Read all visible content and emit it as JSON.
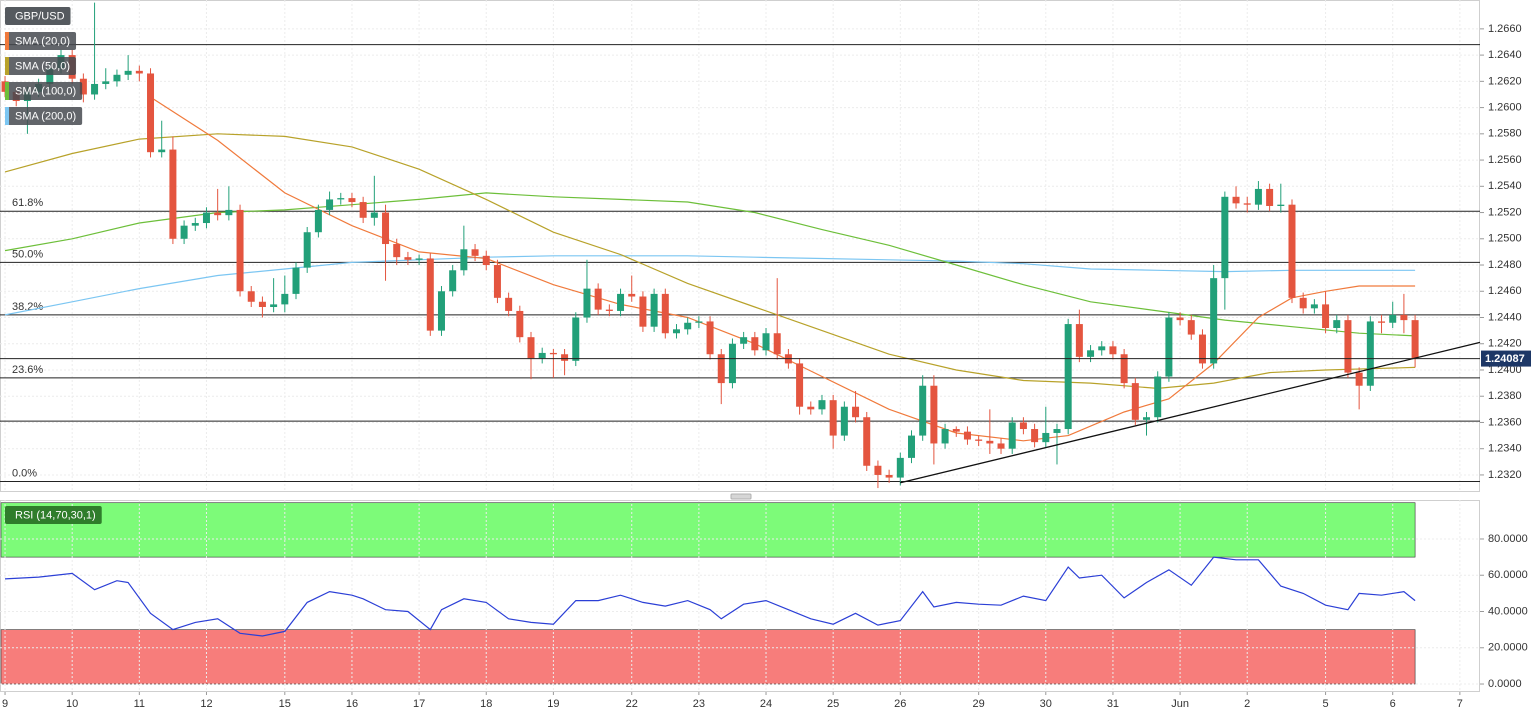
{
  "chart_data": [
    {
      "type": "candlestick",
      "title": "GBP/USD",
      "up_color": "#22a079",
      "down_color": "#e4553f",
      "xlim": [
        -0.45,
        131.8
      ],
      "ylim": [
        1.2307,
        1.2682
      ],
      "yticks": [
        {
          "value": 1.232,
          "label": "1.2320"
        },
        {
          "value": 1.234,
          "label": "1.2340"
        },
        {
          "value": 1.236,
          "label": "1.2360"
        },
        {
          "value": 1.238,
          "label": "1.2380"
        },
        {
          "value": 1.24,
          "label": "1.2400"
        },
        {
          "value": 1.242,
          "label": "1.2420"
        },
        {
          "value": 1.244,
          "label": "1.2440"
        },
        {
          "value": 1.246,
          "label": "1.2460"
        },
        {
          "value": 1.248,
          "label": "1.2480"
        },
        {
          "value": 1.25,
          "label": "1.2500"
        },
        {
          "value": 1.252,
          "label": "1.2520"
        },
        {
          "value": 1.254,
          "label": "1.2540"
        },
        {
          "value": 1.256,
          "label": "1.2560"
        },
        {
          "value": 1.258,
          "label": "1.2580"
        },
        {
          "value": 1.26,
          "label": "1.2600"
        },
        {
          "value": 1.262,
          "label": "1.2620"
        },
        {
          "value": 1.264,
          "label": "1.2640"
        },
        {
          "value": 1.266,
          "label": "1.2660"
        }
      ],
      "grid": true,
      "open": [
        1.262,
        1.2612,
        1.2605,
        1.2612,
        1.2618,
        1.263,
        1.264,
        1.2622,
        1.261,
        1.2618,
        1.262,
        1.2625,
        1.2628,
        1.2626,
        1.2566,
        1.2568,
        1.25,
        1.251,
        1.2512,
        1.252,
        1.2518,
        1.2522,
        1.246,
        1.2452,
        1.2448,
        1.245,
        1.2458,
        1.2478,
        1.2505,
        1.2522,
        1.253,
        1.2531,
        1.2528,
        1.2516,
        1.252,
        1.2496,
        1.2486,
        1.2484,
        1.2485,
        1.243,
        1.246,
        1.2476,
        1.2492,
        1.2487,
        1.248,
        1.2455,
        1.2445,
        1.2425,
        1.2409,
        1.2413,
        1.2412,
        1.2407,
        1.244,
        1.2462,
        1.2446,
        1.2445,
        1.2458,
        1.2456,
        1.2433,
        1.2458,
        1.2428,
        1.2431,
        1.2436,
        1.2437,
        1.2412,
        1.239,
        1.242,
        1.2425,
        1.2415,
        1.2428,
        1.2412,
        1.2405,
        1.2372,
        1.237,
        1.2377,
        1.235,
        1.2372,
        1.2364,
        1.2327,
        1.232,
        1.2318,
        1.2333,
        1.235,
        1.2388,
        1.2344,
        1.2355,
        1.2353,
        1.2347,
        1.2346,
        1.2344,
        1.234,
        1.236,
        1.2355,
        1.2345,
        1.2352,
        1.2355,
        1.2435,
        1.241,
        1.2415,
        1.2418,
        1.2412,
        1.239,
        1.2362,
        1.2364,
        1.2395,
        1.244,
        1.2438,
        1.2427,
        1.2405,
        1.247,
        1.2532,
        1.2527,
        1.2526,
        1.2538,
        1.2525,
        1.2526,
        1.2455,
        1.2447,
        1.245,
        1.2432,
        1.2438,
        1.2398,
        1.2388,
        1.2437,
        1.2436,
        1.2442,
        1.2438
      ],
      "high": [
        1.2624,
        1.2616,
        1.2616,
        1.2622,
        1.2634,
        1.2644,
        1.2644,
        1.2626,
        1.268,
        1.263,
        1.2629,
        1.264,
        1.2632,
        1.263,
        1.259,
        1.2578,
        1.2514,
        1.2516,
        1.2524,
        1.2538,
        1.254,
        1.2526,
        1.2464,
        1.2456,
        1.247,
        1.2472,
        1.2482,
        1.2509,
        1.2526,
        1.2536,
        1.2535,
        1.2535,
        1.2532,
        1.2548,
        1.2526,
        1.25,
        1.249,
        1.2488,
        1.2489,
        1.2464,
        1.248,
        1.251,
        1.2496,
        1.2491,
        1.2484,
        1.2459,
        1.2449,
        1.2429,
        1.2417,
        1.2416,
        1.2416,
        1.2444,
        1.2484,
        1.2466,
        1.245,
        1.2462,
        1.2472,
        1.246,
        1.2462,
        1.2462,
        1.2435,
        1.244,
        1.2441,
        1.2441,
        1.2416,
        1.2424,
        1.2429,
        1.2429,
        1.2432,
        1.247,
        1.2416,
        1.2409,
        1.2376,
        1.2381,
        1.2381,
        1.2376,
        1.2384,
        1.2368,
        1.2331,
        1.2324,
        1.2337,
        1.2354,
        1.2396,
        1.2396,
        1.2359,
        1.2357,
        1.2357,
        1.235,
        1.237,
        1.2348,
        1.2364,
        1.2364,
        1.2359,
        1.2372,
        1.2359,
        1.2439,
        1.2446,
        1.2419,
        1.2422,
        1.2422,
        1.2416,
        1.2394,
        1.2368,
        1.2399,
        1.2444,
        1.2444,
        1.2442,
        1.2431,
        1.248,
        1.2536,
        1.254,
        1.2532,
        1.2544,
        1.2542,
        1.2542,
        1.253,
        1.2459,
        1.2454,
        1.246,
        1.2442,
        1.2442,
        1.2402,
        1.2441,
        1.2442,
        1.2452,
        1.2458,
        1.2442
      ],
      "low": [
        1.2608,
        1.2601,
        1.258,
        1.2608,
        1.2614,
        1.2626,
        1.2618,
        1.2604,
        1.2606,
        1.2614,
        1.2616,
        1.2621,
        1.262,
        1.2562,
        1.2562,
        1.2496,
        1.2496,
        1.2506,
        1.2508,
        1.2514,
        1.2514,
        1.2456,
        1.2448,
        1.244,
        1.2444,
        1.2444,
        1.2454,
        1.2474,
        1.2501,
        1.2518,
        1.2526,
        1.2524,
        1.2512,
        1.251,
        1.2468,
        1.248,
        1.248,
        1.248,
        1.2426,
        1.2426,
        1.2456,
        1.2472,
        1.2483,
        1.2476,
        1.2451,
        1.2441,
        1.2421,
        1.2393,
        1.2405,
        1.2394,
        1.2396,
        1.2403,
        1.2436,
        1.2442,
        1.2441,
        1.2441,
        1.2452,
        1.2429,
        1.2429,
        1.2424,
        1.2424,
        1.2427,
        1.2432,
        1.2408,
        1.2374,
        1.2386,
        1.2416,
        1.2411,
        1.2411,
        1.2408,
        1.2401,
        1.2366,
        1.2366,
        1.2366,
        1.234,
        1.2346,
        1.236,
        1.2323,
        1.231,
        1.2314,
        1.2312,
        1.2329,
        1.2346,
        1.2328,
        1.234,
        1.2349,
        1.2343,
        1.2342,
        1.2336,
        1.2336,
        1.2336,
        1.2351,
        1.2341,
        1.2341,
        1.2328,
        1.2351,
        1.2406,
        1.2406,
        1.2411,
        1.2408,
        1.2386,
        1.2358,
        1.235,
        1.236,
        1.2391,
        1.2434,
        1.2423,
        1.2401,
        1.2401,
        1.2446,
        1.2523,
        1.252,
        1.2522,
        1.2521,
        1.252,
        1.2451,
        1.2443,
        1.2443,
        1.2428,
        1.2428,
        1.2394,
        1.237,
        1.2384,
        1.2428,
        1.2432,
        1.2428,
        1.2402
      ],
      "close": [
        1.2612,
        1.2605,
        1.2612,
        1.2618,
        1.263,
        1.264,
        1.2622,
        1.261,
        1.2618,
        1.262,
        1.2625,
        1.2628,
        1.2626,
        1.2566,
        1.2568,
        1.25,
        1.251,
        1.2512,
        1.252,
        1.2518,
        1.2522,
        1.246,
        1.2452,
        1.2448,
        1.245,
        1.2458,
        1.2478,
        1.2505,
        1.2522,
        1.253,
        1.2531,
        1.2528,
        1.2516,
        1.252,
        1.2496,
        1.2486,
        1.2484,
        1.2485,
        1.243,
        1.246,
        1.2476,
        1.2492,
        1.2487,
        1.248,
        1.2455,
        1.2445,
        1.2425,
        1.2409,
        1.2413,
        1.2412,
        1.2407,
        1.244,
        1.2462,
        1.2446,
        1.2445,
        1.2458,
        1.2456,
        1.2433,
        1.2458,
        1.2428,
        1.2431,
        1.2436,
        1.2437,
        1.2412,
        1.239,
        1.242,
        1.2425,
        1.2415,
        1.2428,
        1.2412,
        1.2405,
        1.2372,
        1.237,
        1.2377,
        1.235,
        1.2372,
        1.2364,
        1.2327,
        1.232,
        1.2318,
        1.2333,
        1.235,
        1.2388,
        1.2344,
        1.2355,
        1.2353,
        1.2347,
        1.2346,
        1.2344,
        1.234,
        1.236,
        1.2355,
        1.2345,
        1.2352,
        1.2355,
        1.2435,
        1.241,
        1.2415,
        1.2418,
        1.2412,
        1.239,
        1.2362,
        1.2364,
        1.2395,
        1.244,
        1.2438,
        1.2427,
        1.2405,
        1.247,
        1.2532,
        1.2527,
        1.2526,
        1.2538,
        1.2525,
        1.2526,
        1.2455,
        1.2447,
        1.245,
        1.2432,
        1.2438,
        1.2398,
        1.2388,
        1.2437,
        1.2436,
        1.2442,
        1.2438,
        1.2409
      ],
      "series": [
        {
          "name": "SMA (20,0)",
          "color": "#f07a3c",
          "x": [
            13,
            19,
            25,
            31,
            37,
            43,
            49,
            55,
            61,
            67,
            73,
            79,
            85,
            91,
            95,
            100,
            104,
            108,
            112,
            115,
            118,
            121,
            126
          ],
          "values": [
            1.2608,
            1.2575,
            1.2535,
            1.251,
            1.249,
            1.2485,
            1.2465,
            1.245,
            1.244,
            1.242,
            1.2395,
            1.237,
            1.2352,
            1.2346,
            1.235,
            1.2368,
            1.2378,
            1.2405,
            1.244,
            1.2455,
            1.246,
            1.2464,
            1.2464
          ]
        },
        {
          "name": "SMA (50,0)",
          "color": "#b8a22a",
          "x": [
            0,
            6,
            12,
            19,
            25,
            31,
            37,
            43,
            49,
            55,
            61,
            67,
            73,
            79,
            85,
            91,
            97,
            103,
            108,
            113,
            118,
            122,
            126
          ],
          "values": [
            1.2551,
            1.2565,
            1.2576,
            1.258,
            1.2578,
            1.257,
            1.2553,
            1.253,
            1.2505,
            1.2488,
            1.2466,
            1.2448,
            1.243,
            1.2412,
            1.24,
            1.2392,
            1.239,
            1.2386,
            1.239,
            1.2398,
            1.24,
            1.2401,
            1.2402
          ]
        },
        {
          "name": "SMA (100,0)",
          "color": "#6dbf3a",
          "x": [
            0,
            6,
            12,
            19,
            25,
            31,
            37,
            43,
            49,
            55,
            61,
            67,
            73,
            79,
            85,
            91,
            97,
            103,
            109,
            115,
            121,
            126
          ],
          "values": [
            1.2491,
            1.25,
            1.2512,
            1.252,
            1.2522,
            1.2526,
            1.253,
            1.2535,
            1.2532,
            1.253,
            1.2528,
            1.252,
            1.2507,
            1.2495,
            1.248,
            1.2465,
            1.2452,
            1.2445,
            1.2438,
            1.2433,
            1.2428,
            1.2426
          ]
        },
        {
          "name": "SMA (200,0)",
          "color": "#7cc6f2",
          "x": [
            0,
            6,
            12,
            19,
            25,
            31,
            37,
            43,
            49,
            55,
            61,
            67,
            73,
            79,
            85,
            91,
            97,
            103,
            109,
            115,
            121,
            126
          ],
          "values": [
            1.2442,
            1.2452,
            1.2462,
            1.2472,
            1.2477,
            1.2482,
            1.2484,
            1.2486,
            1.2487,
            1.2487,
            1.2487,
            1.2486,
            1.2485,
            1.2484,
            1.2483,
            1.2481,
            1.2477,
            1.2476,
            1.2475,
            1.2476,
            1.2476,
            1.2476
          ]
        }
      ],
      "levels": [
        {
          "label": "61.8%",
          "price": 1.2521
        },
        {
          "label": "50.0%",
          "price": 1.2482
        },
        {
          "label": "38.2%",
          "price": 1.2442
        },
        {
          "label": "23.6%",
          "price": 1.2394
        },
        {
          "label": "0.0%",
          "price": 1.2315
        }
      ],
      "lines": [
        1.2648,
        1.2361
      ],
      "trendline": {
        "x": [
          80,
          131.8
        ],
        "values": [
          1.2314,
          1.2421
        ]
      },
      "last_price": 1.24087,
      "last_price_color": "#1d3766"
    },
    {
      "type": "line",
      "xlim": [
        -0.45,
        131.8
      ],
      "ylim": [
        -4.4,
        101.5
      ],
      "xticks": [
        {
          "value": 0,
          "label": "9"
        },
        {
          "value": 6,
          "label": "10"
        },
        {
          "value": 12,
          "label": "11"
        },
        {
          "value": 18,
          "label": "12"
        },
        {
          "value": 25,
          "label": "15"
        },
        {
          "value": 31,
          "label": "16"
        },
        {
          "value": 37,
          "label": "17"
        },
        {
          "value": 43,
          "label": "18"
        },
        {
          "value": 49,
          "label": "19"
        },
        {
          "value": 56,
          "label": "22"
        },
        {
          "value": 62,
          "label": "23"
        },
        {
          "value": 68,
          "label": "24"
        },
        {
          "value": 74,
          "label": "25"
        },
        {
          "value": 80,
          "label": "26"
        },
        {
          "value": 87,
          "label": "29"
        },
        {
          "value": 93,
          "label": "30"
        },
        {
          "value": 99,
          "label": "31"
        },
        {
          "value": 105,
          "label": "Jun"
        },
        {
          "value": 111,
          "label": "2"
        },
        {
          "value": 118,
          "label": "5"
        },
        {
          "value": 124,
          "label": "6"
        },
        {
          "value": 130,
          "label": "7"
        }
      ],
      "yticks": [
        {
          "value": 0,
          "label": "0.0000"
        },
        {
          "value": 20,
          "label": "20.0000"
        },
        {
          "value": 40,
          "label": "40.0000"
        },
        {
          "value": 60,
          "label": "60.0000"
        },
        {
          "value": 80,
          "label": "80.0000"
        }
      ],
      "grid": true,
      "zones": [
        {
          "from": 70,
          "to": 100,
          "color": "#7dfb79"
        },
        {
          "from": 0,
          "to": 30,
          "color": "#f77d7b"
        }
      ],
      "series": [
        {
          "name": "RSI (14,70,30,1)",
          "color": "#2b3fd6",
          "x": [
            0,
            3,
            6,
            8,
            10,
            11,
            13,
            15,
            17,
            19,
            21,
            23,
            25,
            27,
            29,
            31,
            32,
            34,
            36,
            38,
            39,
            41,
            43,
            45,
            47,
            49,
            51,
            53,
            55,
            57,
            59,
            61,
            63,
            64,
            66,
            68,
            70,
            72,
            74,
            76,
            78,
            80,
            82,
            83,
            85,
            87,
            89,
            91,
            93,
            95,
            96,
            98,
            100,
            102,
            104,
            106,
            108,
            110,
            112,
            114,
            116,
            118,
            120,
            121,
            123,
            125,
            126
          ],
          "values": [
            58,
            59,
            61,
            52,
            57,
            56,
            39,
            30,
            34,
            36,
            28,
            26.5,
            29,
            45,
            51,
            49,
            47,
            41,
            40,
            30,
            41,
            47,
            45,
            36,
            34,
            33,
            46,
            46,
            49,
            45,
            43,
            46,
            41,
            36,
            44,
            46,
            41,
            36,
            33,
            39,
            32.5,
            35,
            51,
            42.5,
            45,
            44,
            43.5,
            48.5,
            46,
            64.5,
            58.5,
            60,
            47.5,
            56,
            63,
            54.5,
            70,
            68.5,
            68.5,
            54,
            50,
            43.5,
            41,
            50,
            49,
            51,
            46
          ]
        }
      ]
    }
  ]
}
